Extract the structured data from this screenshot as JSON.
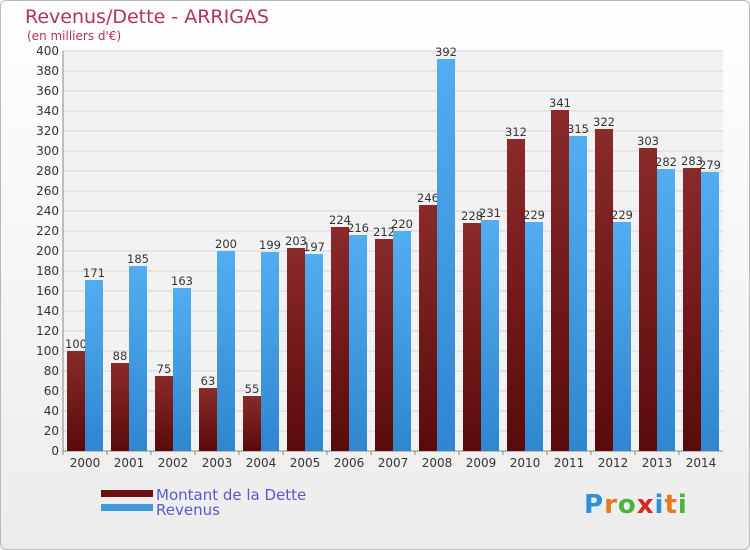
{
  "title": "Revenus/Dette - ARRIGAS",
  "subtitle": "(en milliers d'€)",
  "colors": {
    "dette": "#7f1d1d",
    "revenus": "#4aa3e8",
    "title": "#b3305c",
    "legend_text": "#5b58ce"
  },
  "logo": {
    "letters": [
      "P",
      "r",
      "o",
      "x",
      "i",
      "t",
      "i"
    ],
    "colors": [
      "#2f8fd8",
      "#e8781c",
      "#4bb43a",
      "#d9261c",
      "#2f8fd8",
      "#e8781c",
      "#4bb43a"
    ]
  },
  "chart_data": {
    "type": "bar",
    "categories": [
      "2000",
      "2001",
      "2002",
      "2003",
      "2004",
      "2005",
      "2006",
      "2007",
      "2008",
      "2009",
      "2010",
      "2011",
      "2012",
      "2013",
      "2014"
    ],
    "series": [
      {
        "name": "Montant de la Dette",
        "values": [
          100,
          88,
          75,
          63,
          55,
          203,
          224,
          212,
          246,
          228,
          312,
          341,
          322,
          303,
          283
        ]
      },
      {
        "name": "Revenus",
        "values": [
          171,
          185,
          163,
          200,
          199,
          197,
          216,
          220,
          392,
          231,
          229,
          315,
          229,
          282,
          279
        ]
      }
    ],
    "ylim": [
      0,
      400
    ],
    "ytick_step": 20,
    "grid": true,
    "legend_position": "bottom-left"
  }
}
